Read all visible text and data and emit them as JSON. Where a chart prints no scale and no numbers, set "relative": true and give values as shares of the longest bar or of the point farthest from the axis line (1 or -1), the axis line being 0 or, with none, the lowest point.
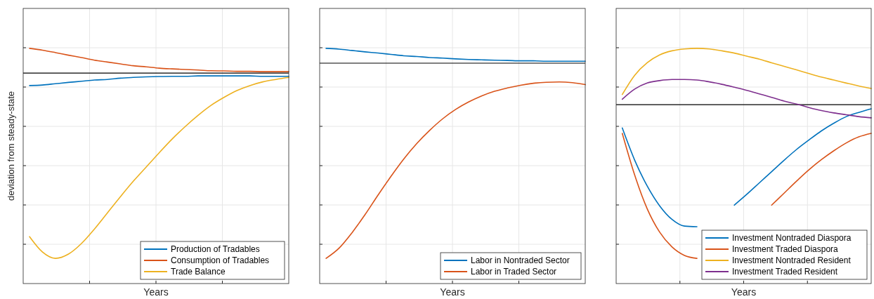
{
  "chart_data": [
    {
      "type": "line",
      "relative": true,
      "ylabel": "deviation from steady-state",
      "xlabel": "Years",
      "grid": true,
      "legend": "bottom right",
      "categories": [
        null,
        null,
        null,
        null,
        null,
        null,
        null,
        null,
        null,
        null,
        null,
        null,
        null,
        null,
        null,
        null,
        null,
        null,
        null,
        null,
        null
      ],
      "series": [
        {
          "name": "Production of Tradables",
          "color": "#0072bd",
          "values": [
            -0.067,
            -0.064,
            -0.057,
            -0.05,
            -0.044,
            -0.037,
            -0.034,
            -0.027,
            -0.023,
            -0.02,
            -0.018,
            -0.017,
            -0.017,
            -0.015,
            -0.015,
            -0.015,
            -0.015,
            -0.015,
            -0.017,
            -0.017,
            -0.017
          ]
        },
        {
          "name": "Consumption of Tradables",
          "color": "#d95319",
          "values": [
            0.134,
            0.124,
            0.111,
            0.097,
            0.084,
            0.07,
            0.06,
            0.05,
            0.04,
            0.034,
            0.027,
            0.023,
            0.02,
            0.017,
            0.013,
            0.012,
            0.01,
            0.01,
            0.008,
            0.008,
            0.008
          ]
        },
        {
          "name": "Trade Balance",
          "color": "#edb120",
          "values": [
            -0.883,
            -0.966,
            -1,
            -0.977,
            -0.92,
            -0.842,
            -0.755,
            -0.668,
            -0.584,
            -0.507,
            -0.43,
            -0.356,
            -0.289,
            -0.228,
            -0.174,
            -0.131,
            -0.094,
            -0.067,
            -0.047,
            -0.034,
            -0.023
          ]
        }
      ]
    },
    {
      "type": "line",
      "relative": true,
      "xlabel": "Years",
      "grid": true,
      "legend": "bottom right",
      "categories": [
        null,
        null,
        null,
        null,
        null,
        null,
        null,
        null,
        null,
        null,
        null,
        null,
        null,
        null,
        null,
        null,
        null,
        null,
        null,
        null,
        null
      ],
      "series": [
        {
          "name": "Labor in Nontraded Sector",
          "color": "#0072bd",
          "values": [
            0.076,
            0.072,
            0.065,
            0.058,
            0.052,
            0.045,
            0.038,
            0.034,
            0.029,
            0.026,
            0.022,
            0.019,
            0.017,
            0.015,
            0.014,
            0.012,
            0.012,
            0.01,
            0.01,
            0.01,
            0.01
          ]
        },
        {
          "name": "Labor in Traded Sector",
          "color": "#d95319",
          "values": [
            -1,
            -0.948,
            -0.869,
            -0.777,
            -0.677,
            -0.581,
            -0.491,
            -0.412,
            -0.344,
            -0.285,
            -0.237,
            -0.199,
            -0.168,
            -0.144,
            -0.127,
            -0.113,
            -0.103,
            -0.098,
            -0.096,
            -0.1,
            -0.11
          ]
        }
      ]
    },
    {
      "type": "line",
      "relative": true,
      "xlabel": "Years",
      "grid": true,
      "legend": "bottom right",
      "categories": [
        null,
        null,
        null,
        null,
        null,
        null,
        null,
        null,
        null,
        null,
        null,
        null,
        null,
        null,
        null,
        null,
        null,
        null,
        null,
        null,
        null
      ],
      "series": [
        {
          "name": "Investment Nontraded Diaspora",
          "color": "#0072bd",
          "values": [
            -0.152,
            -0.362,
            -0.529,
            -0.658,
            -0.747,
            -0.79,
            -0.794,
            null,
            null,
            -0.654,
            -0.584,
            -0.51,
            -0.436,
            -0.362,
            -0.292,
            -0.23,
            -0.171,
            -0.121,
            -0.078,
            -0.051,
            -0.027
          ]
        },
        {
          "name": "Investment Traded Diaspora",
          "color": "#d95319",
          "values": [
            -0.187,
            -0.459,
            -0.677,
            -0.829,
            -0.926,
            -0.981,
            -1,
            null,
            null,
            null,
            null,
            null,
            -0.654,
            -0.576,
            -0.498,
            -0.424,
            -0.358,
            -0.3,
            -0.249,
            -0.21,
            -0.187
          ]
        },
        {
          "name": "Investment Nontraded Resident",
          "color": "#edb120",
          "values": [
            0.066,
            0.191,
            0.272,
            0.323,
            0.35,
            0.362,
            0.366,
            0.362,
            0.35,
            0.335,
            0.315,
            0.296,
            0.272,
            0.249,
            0.226,
            0.202,
            0.179,
            0.16,
            0.14,
            0.121,
            0.105
          ]
        },
        {
          "name": "Investment Traded Resident",
          "color": "#7e2f8e",
          "values": [
            0.035,
            0.101,
            0.14,
            0.156,
            0.163,
            0.163,
            0.16,
            0.148,
            0.132,
            0.113,
            0.093,
            0.07,
            0.047,
            0.023,
            0.004,
            -0.019,
            -0.039,
            -0.054,
            -0.066,
            -0.078,
            -0.086
          ]
        }
      ]
    }
  ]
}
